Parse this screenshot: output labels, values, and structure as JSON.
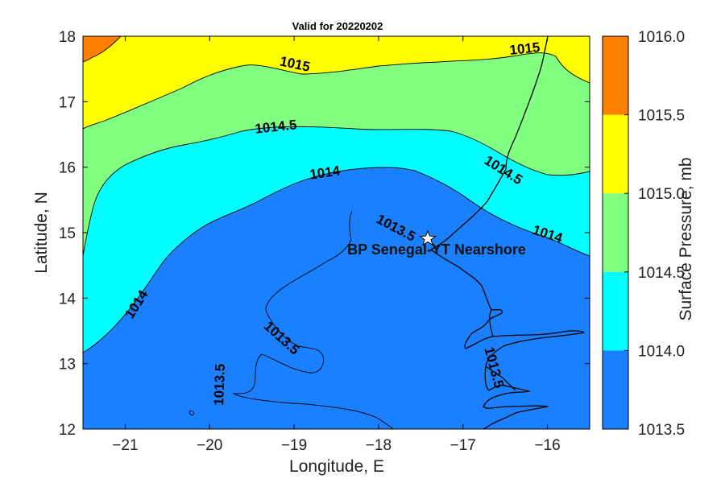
{
  "figure": {
    "title": "Valid for 20220202",
    "xlabel": "Longitude, E",
    "ylabel": "Latitude, N",
    "colorbar_label": "Surface Pressure, mb",
    "site_label": "BP Senegal-YT Nearshore"
  },
  "chart_data": {
    "type": "heatmap",
    "title": "Valid for 20220202",
    "xlabel": "Longitude, E",
    "ylabel": "Latitude, N",
    "xlim": [
      -21.5,
      -15.5
    ],
    "ylim": [
      12,
      18
    ],
    "xticks": [
      "−21",
      "−20",
      "−19",
      "−18",
      "−17",
      "−16"
    ],
    "xtick_values": [
      -21,
      -20,
      -19,
      -18,
      -17,
      -16
    ],
    "yticks": [
      "12",
      "13",
      "14",
      "15",
      "16",
      "17",
      "18"
    ],
    "ytick_values": [
      12,
      13,
      14,
      15,
      16,
      17,
      18
    ],
    "colorbar": {
      "label": "Surface Pressure, mb",
      "levels": [
        1013.5,
        1014.0,
        1014.5,
        1015.0,
        1015.5,
        1016.0
      ],
      "level_labels": [
        "1013.5",
        "1014.0",
        "1014.5",
        "1015.0",
        "1015.5",
        "1016.0"
      ],
      "colors": [
        "#1a80ff",
        "#00ffff",
        "#80ff80",
        "#ffff00",
        "#ff8000"
      ]
    },
    "contour_labels": [
      {
        "text": "1015",
        "lon": -19.2,
        "lat": 17.53
      },
      {
        "text": "1015",
        "lon": -16.4,
        "lat": 17.82
      },
      {
        "text": "1014.5",
        "lon": -18.9,
        "lat": 16.57
      },
      {
        "text": "1014.5",
        "lon": -16.9,
        "lat": 15.98
      },
      {
        "text": "1014",
        "lon": -18.6,
        "lat": 15.9
      },
      {
        "text": "1014",
        "lon": -16.2,
        "lat": 14.97
      },
      {
        "text": "1014",
        "lon": -20.8,
        "lat": 13.86
      },
      {
        "text": "1013.5",
        "lon": -17.68,
        "lat": 15.03
      },
      {
        "text": "1013.5",
        "lon": -19.0,
        "lat": 13.4
      },
      {
        "text": "1013.5",
        "lon": -19.9,
        "lat": 12.67
      },
      {
        "text": "1013.5",
        "lon": -16.85,
        "lat": 12.95
      }
    ],
    "site": {
      "name": "BP Senegal-YT Nearshore",
      "lon": -17.45,
      "lat": 14.93
    }
  }
}
